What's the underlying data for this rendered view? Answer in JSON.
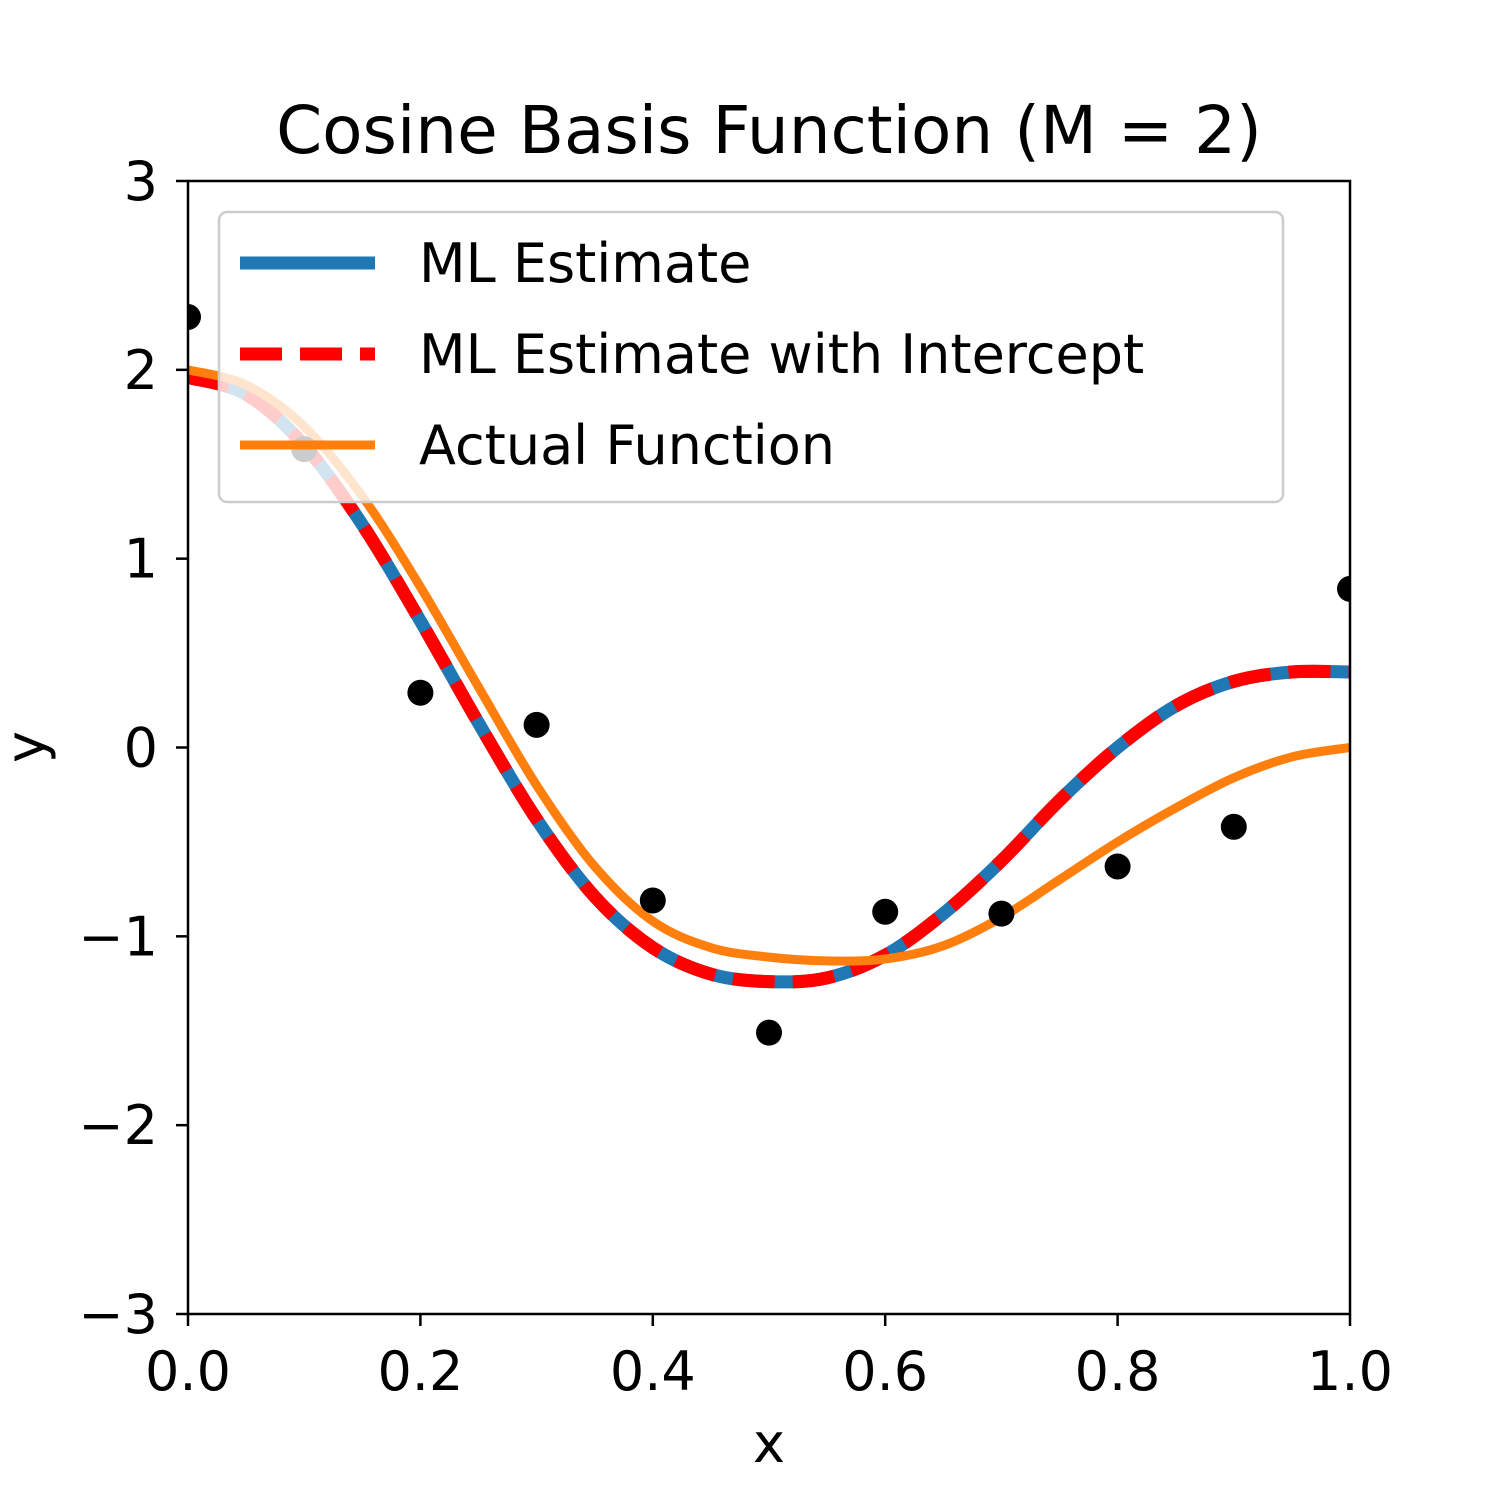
{
  "chart_data": {
    "type": "line",
    "title": "Cosine Basis Function (M = 2)",
    "xlabel": "x",
    "ylabel": "y",
    "xlim": [
      0.0,
      1.0
    ],
    "ylim": [
      -3,
      3
    ],
    "xticks": [
      0.0,
      0.2,
      0.4,
      0.6,
      0.8,
      1.0
    ],
    "xtick_labels": [
      "0.0",
      "0.2",
      "0.4",
      "0.6",
      "0.8",
      "1.0"
    ],
    "yticks": [
      -3,
      -2,
      -1,
      0,
      1,
      2,
      3
    ],
    "ytick_labels": [
      "−3",
      "−2",
      "−1",
      "0",
      "1",
      "2",
      "3"
    ],
    "grid": false,
    "legend_position": "top",
    "colors": {
      "ml": "#1f77b4",
      "intercept": "#ff0000",
      "actual": "#ff7f0e",
      "points": "#000000"
    },
    "series": [
      {
        "name": "ML Estimate",
        "style": "solid",
        "x": [
          0.0,
          0.05,
          0.1,
          0.15,
          0.2,
          0.25,
          0.3,
          0.35,
          0.4,
          0.45,
          0.5,
          0.55,
          0.6,
          0.65,
          0.7,
          0.75,
          0.8,
          0.85,
          0.9,
          0.95,
          1.0
        ],
        "y": [
          1.96,
          1.87,
          1.6,
          1.18,
          0.67,
          0.13,
          -0.38,
          -0.79,
          -1.06,
          -1.2,
          -1.24,
          -1.22,
          -1.1,
          -0.88,
          -0.6,
          -0.28,
          0.0,
          0.22,
          0.35,
          0.4,
          0.4
        ]
      },
      {
        "name": "ML Estimate with Intercept",
        "style": "dashed",
        "x": [
          0.0,
          0.05,
          0.1,
          0.15,
          0.2,
          0.25,
          0.3,
          0.35,
          0.4,
          0.45,
          0.5,
          0.55,
          0.6,
          0.65,
          0.7,
          0.75,
          0.8,
          0.85,
          0.9,
          0.95,
          1.0
        ],
        "y": [
          1.96,
          1.87,
          1.6,
          1.18,
          0.67,
          0.13,
          -0.38,
          -0.79,
          -1.06,
          -1.2,
          -1.24,
          -1.22,
          -1.1,
          -0.88,
          -0.6,
          -0.28,
          0.0,
          0.22,
          0.35,
          0.4,
          0.4
        ]
      },
      {
        "name": "Actual Function",
        "style": "solid",
        "x": [
          0.0,
          0.05,
          0.1,
          0.15,
          0.2,
          0.25,
          0.3,
          0.35,
          0.4,
          0.45,
          0.5,
          0.55,
          0.6,
          0.65,
          0.7,
          0.75,
          0.8,
          0.85,
          0.9,
          0.95,
          1.0
        ],
        "y": [
          2.0,
          1.92,
          1.7,
          1.33,
          0.85,
          0.32,
          -0.2,
          -0.63,
          -0.92,
          -1.06,
          -1.11,
          -1.13,
          -1.12,
          -1.05,
          -0.9,
          -0.7,
          -0.5,
          -0.32,
          -0.16,
          -0.05,
          0.0
        ]
      }
    ],
    "points": {
      "x": [
        0.0,
        0.1,
        0.2,
        0.3,
        0.4,
        0.5,
        0.6,
        0.7,
        0.8,
        0.9,
        1.0
      ],
      "y": [
        2.28,
        1.58,
        0.29,
        0.12,
        -0.81,
        -1.51,
        -0.87,
        -0.88,
        -0.63,
        -0.42,
        0.84
      ]
    }
  }
}
